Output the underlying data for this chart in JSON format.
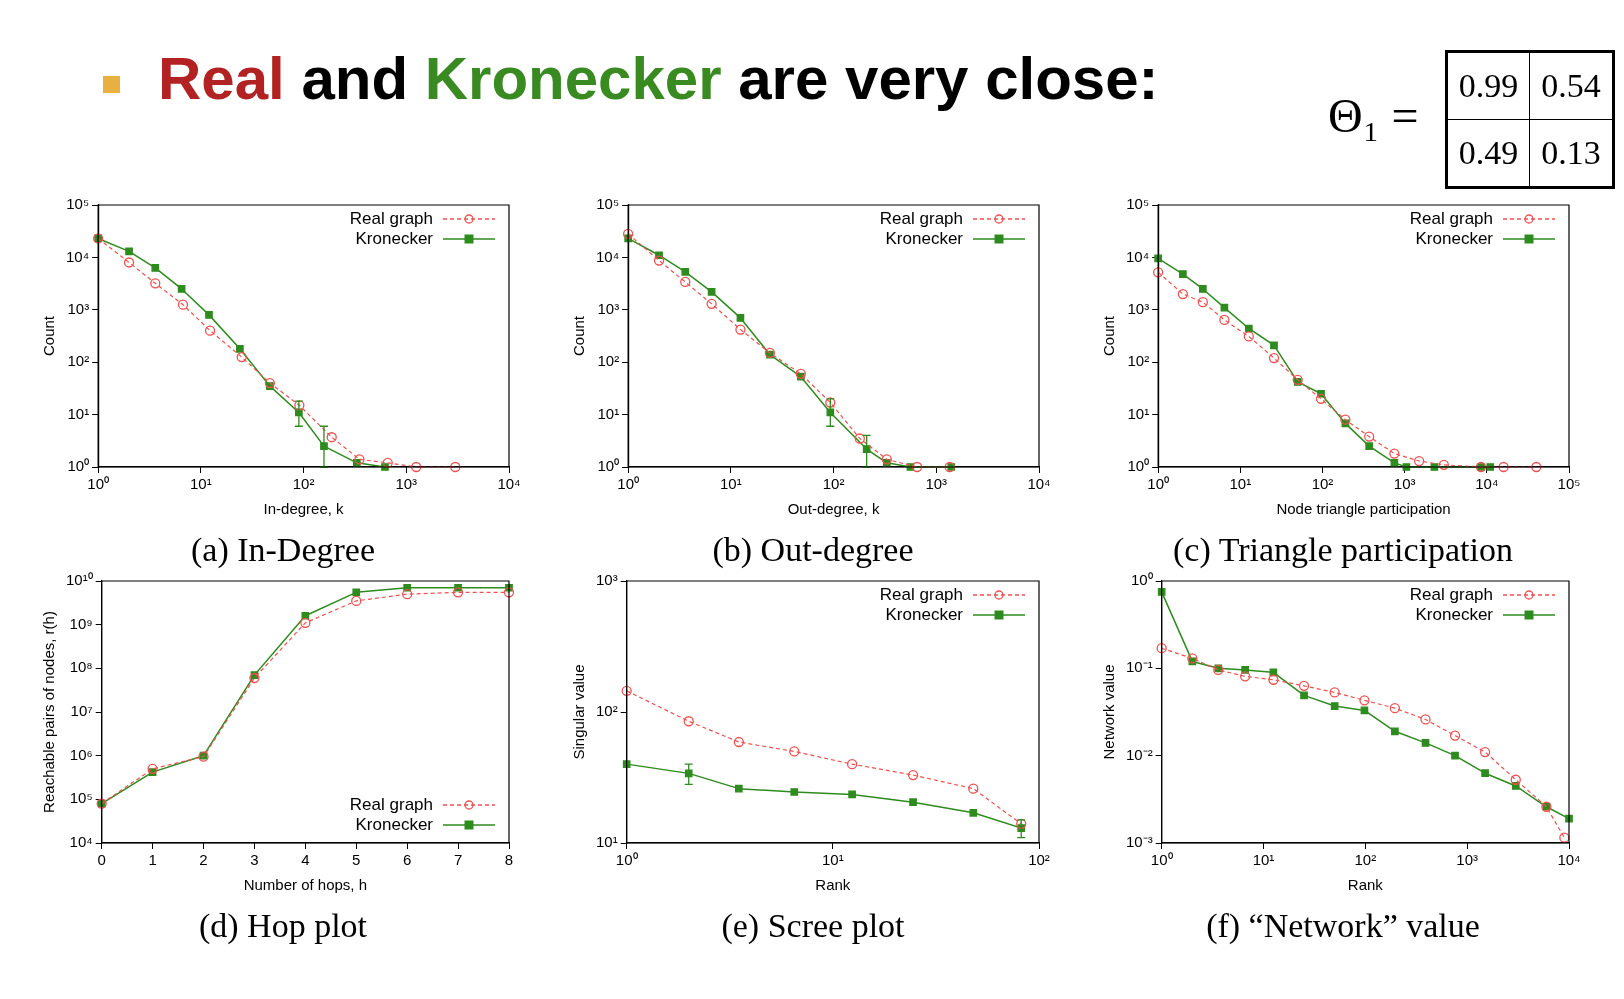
{
  "chart_data": [
    {
      "type": "other",
      "title": "Real and Kronecker are very close:",
      "colors": [
        "#b22222",
        "#000000",
        "#3a8a22",
        "#000000"
      ],
      "annotations": [
        "Θ₁ =",
        "0.99",
        "0.54",
        "0.49",
        "0.13"
      ]
    },
    {
      "type": "line",
      "title": "(a) In-Degree",
      "xlabel": "In-degree, k",
      "ylabel": "Count",
      "log": "xy",
      "xlim": [
        1,
        10000
      ],
      "ylim": [
        1,
        100000
      ],
      "xticks": [
        {
          "value": 1,
          "label": "10⁰"
        },
        {
          "value": 10,
          "label": "10¹"
        },
        {
          "value": 100,
          "label": "10²"
        },
        {
          "value": 1000,
          "label": "10³"
        },
        {
          "value": 10000,
          "label": "10⁴"
        }
      ],
      "yticks": [
        {
          "value": 1,
          "label": "10⁰"
        },
        {
          "value": 10,
          "label": "10¹"
        },
        {
          "value": 100,
          "label": "10²"
        },
        {
          "value": 1000,
          "label": "10³"
        },
        {
          "value": 10000,
          "label": "10⁴"
        },
        {
          "value": 100000,
          "label": "10⁵"
        }
      ],
      "legend": "top right",
      "series": [
        {
          "name": "Real graph",
          "color": "#f05050",
          "marker": "circle",
          "line_style": "dashed",
          "x": [
            1,
            2,
            3.6,
            6.7,
            12.3,
            25,
            47,
            91,
            188,
            350,
            660,
            1250,
            3000
          ],
          "values": [
            23000,
            8000,
            3200,
            1250,
            400,
            125,
            40,
            15,
            3.7,
            1.4,
            1.2,
            1,
            1
          ]
        },
        {
          "name": "Kronecker",
          "color": "#2e8b1e",
          "marker": "square",
          "line_style": "solid",
          "x": [
            1,
            2,
            3.6,
            6.5,
            12,
            24,
            47,
            90,
            158,
            330,
            620
          ],
          "values": [
            23000,
            13000,
            6300,
            2500,
            800,
            180,
            35,
            11,
            2.5,
            1.2,
            1
          ],
          "errors": [
            null,
            null,
            null,
            null,
            null,
            null,
            null,
            [
              6,
              18
            ],
            [
              1,
              6
            ],
            null,
            null
          ]
        }
      ]
    },
    {
      "type": "line",
      "title": "(b) Out-degree",
      "xlabel": "Out-degree, k",
      "ylabel": "Count",
      "log": "xy",
      "xlim": [
        1,
        10000
      ],
      "ylim": [
        1,
        100000
      ],
      "xticks": [
        {
          "value": 1,
          "label": "10⁰"
        },
        {
          "value": 10,
          "label": "10¹"
        },
        {
          "value": 100,
          "label": "10²"
        },
        {
          "value": 1000,
          "label": "10³"
        },
        {
          "value": 10000,
          "label": "10⁴"
        }
      ],
      "yticks": [
        {
          "value": 1,
          "label": "10⁰"
        },
        {
          "value": 10,
          "label": "10¹"
        },
        {
          "value": 100,
          "label": "10²"
        },
        {
          "value": 1000,
          "label": "10³"
        },
        {
          "value": 10000,
          "label": "10⁴"
        },
        {
          "value": 100000,
          "label": "10⁵"
        }
      ],
      "legend": "top right",
      "series": [
        {
          "name": "Real graph",
          "color": "#f05050",
          "marker": "circle",
          "line_style": "dashed",
          "x": [
            1,
            2,
            3.6,
            6.5,
            12.4,
            24,
            48,
            93,
            180,
            330,
            650,
            1350
          ],
          "values": [
            28000,
            8700,
            3400,
            1300,
            420,
            150,
            60,
            17,
            3.5,
            1.4,
            1,
            1
          ]
        },
        {
          "name": "Kronecker",
          "color": "#2e8b1e",
          "marker": "square",
          "line_style": "solid",
          "x": [
            1,
            2,
            3.6,
            6.5,
            12.4,
            24,
            48,
            93,
            210,
            330,
            560,
            1400
          ],
          "values": [
            23000,
            11000,
            5300,
            2200,
            700,
            140,
            53,
            11,
            2.2,
            1.2,
            1,
            1
          ],
          "errors": [
            null,
            null,
            null,
            null,
            null,
            null,
            null,
            [
              6,
              20
            ],
            [
              1,
              4
            ],
            null,
            null,
            null
          ]
        }
      ]
    },
    {
      "type": "line",
      "title": "(c) Triangle participation",
      "xlabel": "Node triangle participation",
      "ylabel": "Count",
      "log": "xy",
      "xlim": [
        1,
        100000
      ],
      "ylim": [
        1,
        100000
      ],
      "xticks": [
        {
          "value": 1,
          "label": "10⁰"
        },
        {
          "value": 10,
          "label": "10¹"
        },
        {
          "value": 100,
          "label": "10²"
        },
        {
          "value": 1000,
          "label": "10³"
        },
        {
          "value": 10000,
          "label": "10⁴"
        },
        {
          "value": 100000,
          "label": "10⁵"
        }
      ],
      "yticks": [
        {
          "value": 1,
          "label": "10⁰"
        },
        {
          "value": 10,
          "label": "10¹"
        },
        {
          "value": 100,
          "label": "10²"
        },
        {
          "value": 1000,
          "label": "10³"
        },
        {
          "value": 10000,
          "label": "10⁴"
        },
        {
          "value": 100000,
          "label": "10⁵"
        }
      ],
      "legend": "top right",
      "series": [
        {
          "name": "Real graph",
          "color": "#f05050",
          "marker": "circle",
          "line_style": "dashed",
          "x": [
            1,
            2,
            3.5,
            6.4,
            12.7,
            25.7,
            50,
            96,
            190,
            370,
            750,
            1500,
            3000,
            8500,
            16000,
            40000
          ],
          "values": [
            5200,
            2000,
            1400,
            640,
            310,
            120,
            46,
            20,
            8,
            3.8,
            1.8,
            1.3,
            1.1,
            1,
            1,
            1
          ]
        },
        {
          "name": "Kronecker",
          "color": "#2e8b1e",
          "marker": "square",
          "line_style": "solid",
          "x": [
            1,
            2,
            3.5,
            6.4,
            12.7,
            25.7,
            50,
            96,
            190,
            370,
            750,
            1050,
            2300,
            8500,
            11000
          ],
          "values": [
            9600,
            4800,
            2500,
            1100,
            440,
            210,
            42,
            25,
            6.8,
            2.5,
            1.2,
            1,
            1,
            1,
            1
          ]
        }
      ]
    },
    {
      "type": "line",
      "title": "(d) Hop plot",
      "xlabel": "Number of hops, h",
      "ylabel": "Reachable pairs of nodes, r(h)",
      "log": "y",
      "xlim": [
        0,
        8
      ],
      "ylim": [
        10000,
        10000000000
      ],
      "xticks": [
        0,
        1,
        2,
        3,
        4,
        5,
        6,
        7,
        8
      ],
      "yticks": [
        {
          "value": 10000,
          "label": "10⁴"
        },
        {
          "value": 100000,
          "label": "10⁵"
        },
        {
          "value": 1000000,
          "label": "10⁶"
        },
        {
          "value": 10000000,
          "label": "10⁷"
        },
        {
          "value": 100000000,
          "label": "10⁸"
        },
        {
          "value": 1000000000,
          "label": "10⁹"
        },
        {
          "value": 10000000000,
          "label": "10¹⁰"
        }
      ],
      "legend": "bottom right",
      "series": [
        {
          "name": "Real graph",
          "color": "#f05050",
          "marker": "circle",
          "line_style": "dashed",
          "x": [
            0,
            1,
            2,
            3,
            4,
            5,
            6,
            7,
            8
          ],
          "values": [
            80000,
            500000,
            950000,
            60000000,
            1100000000,
            3500000000,
            5000000000,
            5500000000,
            5500000000
          ]
        },
        {
          "name": "Kronecker",
          "color": "#2e8b1e",
          "marker": "square",
          "line_style": "solid",
          "x": [
            0,
            1,
            2,
            3,
            4,
            5,
            6,
            7,
            8
          ],
          "values": [
            80000,
            420000,
            1000000,
            70000000,
            1600000000,
            5500000000,
            7000000000,
            7000000000,
            7000000000
          ]
        }
      ]
    },
    {
      "type": "line",
      "title": "(e) Scree plot",
      "xlabel": "Rank",
      "ylabel": "Singular value",
      "log": "xy",
      "xlim": [
        1,
        100
      ],
      "ylim": [
        10,
        1000
      ],
      "xticks": [
        {
          "value": 1,
          "label": "10⁰"
        },
        {
          "value": 10,
          "label": "10¹"
        },
        {
          "value": 100,
          "label": "10²"
        }
      ],
      "yticks": [
        {
          "value": 10,
          "label": "10¹"
        },
        {
          "value": 100,
          "label": "10²"
        },
        {
          "value": 1000,
          "label": "10³"
        }
      ],
      "legend": "top right",
      "series": [
        {
          "name": "Real graph",
          "color": "#f05050",
          "marker": "circle",
          "line_style": "dashed",
          "x": [
            1,
            2,
            3.5,
            6.5,
            12.4,
            24.5,
            48,
            82
          ],
          "values": [
            145,
            85,
            59,
            50,
            40,
            33,
            26,
            14
          ]
        },
        {
          "name": "Kronecker",
          "color": "#2e8b1e",
          "marker": "square",
          "line_style": "solid",
          "x": [
            1,
            2,
            3.5,
            6.5,
            12.4,
            24.5,
            48,
            82
          ],
          "values": [
            40,
            34,
            26,
            24.5,
            23.5,
            20.5,
            17,
            13
          ],
          "errors": [
            null,
            [
              28,
              40
            ],
            null,
            null,
            null,
            null,
            null,
            [
              11,
              15
            ]
          ]
        }
      ]
    },
    {
      "type": "line",
      "title": "(f) “Network” value",
      "xlabel": "Rank",
      "ylabel": "Network value",
      "log": "xy",
      "xlim": [
        1,
        10000
      ],
      "ylim": [
        0.001,
        1
      ],
      "xticks": [
        {
          "value": 1,
          "label": "10⁰"
        },
        {
          "value": 10,
          "label": "10¹"
        },
        {
          "value": 100,
          "label": "10²"
        },
        {
          "value": 1000,
          "label": "10³"
        },
        {
          "value": 10000,
          "label": "10⁴"
        }
      ],
      "yticks": [
        {
          "value": 0.001,
          "label": "10⁻³"
        },
        {
          "value": 0.01,
          "label": "10⁻²"
        },
        {
          "value": 0.1,
          "label": "10⁻¹"
        },
        {
          "value": 1,
          "label": "10⁰"
        }
      ],
      "legend": "top right",
      "series": [
        {
          "name": "Real graph",
          "color": "#f05050",
          "marker": "circle",
          "line_style": "dashed",
          "x": [
            1,
            2,
            3.6,
            6.6,
            12.5,
            25,
            50,
            98,
            195,
            390,
            760,
            1500,
            3000,
            6000,
            9000
          ],
          "values": [
            0.17,
            0.13,
            0.096,
            0.081,
            0.074,
            0.063,
            0.053,
            0.043,
            0.035,
            0.026,
            0.017,
            0.011,
            0.0053,
            0.0026,
            0.00115
          ]
        },
        {
          "name": "Kronecker",
          "color": "#2e8b1e",
          "marker": "square",
          "line_style": "solid",
          "x": [
            1,
            2,
            3.6,
            6.6,
            12.5,
            25,
            50,
            98,
            195,
            390,
            760,
            1500,
            3000,
            6000,
            10000
          ],
          "values": [
            0.75,
            0.12,
            0.1,
            0.096,
            0.09,
            0.049,
            0.037,
            0.033,
            0.019,
            0.014,
            0.01,
            0.0063,
            0.0045,
            0.0026,
            0.0019
          ]
        }
      ]
    }
  ]
}
